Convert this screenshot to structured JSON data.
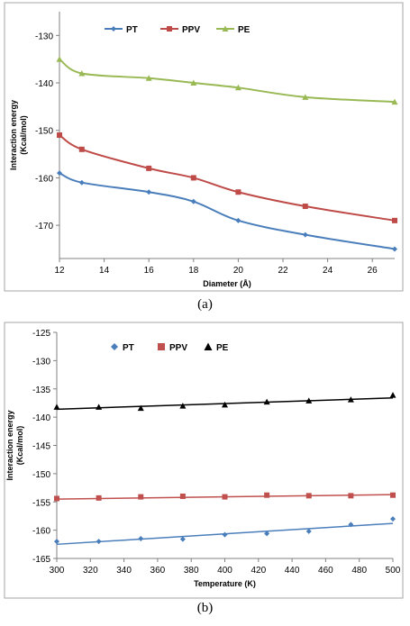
{
  "chart_data": [
    {
      "type": "line",
      "panel_label": "(a)",
      "xlabel": "Diameter (Å)",
      "ylabel": "Interaction energy (Kcal/mol)",
      "ylabel_lines": [
        "Interaction energy",
        "(Kcal/mol)"
      ],
      "xlim": [
        12,
        27
      ],
      "ylim": [
        -177,
        -125
      ],
      "xticks": [
        12,
        14,
        16,
        18,
        20,
        22,
        24,
        26
      ],
      "yticks": [
        -130,
        -140,
        -150,
        -160,
        -170
      ],
      "grid": false,
      "legend_position": "top-left",
      "series": [
        {
          "name": "PT",
          "color": "#4a7ebb",
          "marker": "diamond",
          "x": [
            12,
            13,
            16,
            18,
            20,
            23,
            27
          ],
          "y": [
            -159,
            -161,
            -163,
            -165,
            -169,
            -172,
            -175
          ]
        },
        {
          "name": "PPV",
          "color": "#be4b48",
          "marker": "square",
          "x": [
            12,
            13,
            16,
            18,
            20,
            23,
            27
          ],
          "y": [
            -151,
            -154,
            -158,
            -160,
            -163,
            -166,
            -169
          ]
        },
        {
          "name": "PE",
          "color": "#98b954",
          "marker": "triangle",
          "x": [
            12,
            13,
            16,
            18,
            20,
            23,
            27
          ],
          "y": [
            -135,
            -138,
            -139,
            -140,
            -141,
            -143,
            -144
          ]
        }
      ]
    },
    {
      "type": "scatter",
      "panel_label": "(b)",
      "xlabel": "Temperature (K)",
      "ylabel": "Interaction energy (Kcal/mol)",
      "ylabel_lines": [
        "Interaction energy",
        "(Kcal/mol)"
      ],
      "xlim": [
        300,
        500
      ],
      "ylim": [
        -165,
        -125
      ],
      "xticks": [
        300,
        320,
        340,
        360,
        380,
        400,
        420,
        440,
        460,
        480,
        500
      ],
      "yticks": [
        -125,
        -130,
        -135,
        -140,
        -145,
        -150,
        -155,
        -160,
        -165
      ],
      "grid": false,
      "legend_position": "top-left",
      "trendlines": true,
      "series": [
        {
          "name": "PT",
          "color": "#4a7ebb",
          "marker": "diamond",
          "x": [
            300,
            325,
            350,
            375,
            400,
            425,
            450,
            475,
            500
          ],
          "y": [
            -162,
            -162,
            -161.5,
            -161.6,
            -160.8,
            -160.6,
            -160.2,
            -159,
            -158
          ],
          "trend": [
            -162.5,
            -158.8
          ]
        },
        {
          "name": "PPV",
          "color": "#c0504d",
          "marker": "square",
          "x": [
            300,
            325,
            350,
            375,
            400,
            425,
            450,
            475,
            500
          ],
          "y": [
            -154.4,
            -154.3,
            -154.1,
            -154,
            -154.1,
            -153.8,
            -153.9,
            -153.9,
            -153.8
          ],
          "trend": [
            -154.5,
            -153.7
          ]
        },
        {
          "name": "PE",
          "color": "#000000",
          "marker": "triangle",
          "x": [
            300,
            325,
            350,
            375,
            400,
            425,
            450,
            475,
            500
          ],
          "y": [
            -138.2,
            -138.2,
            -138.4,
            -138,
            -137.8,
            -137.3,
            -137.1,
            -136.9,
            -136.1
          ],
          "trend": [
            -138.6,
            -136.6
          ]
        }
      ]
    }
  ]
}
